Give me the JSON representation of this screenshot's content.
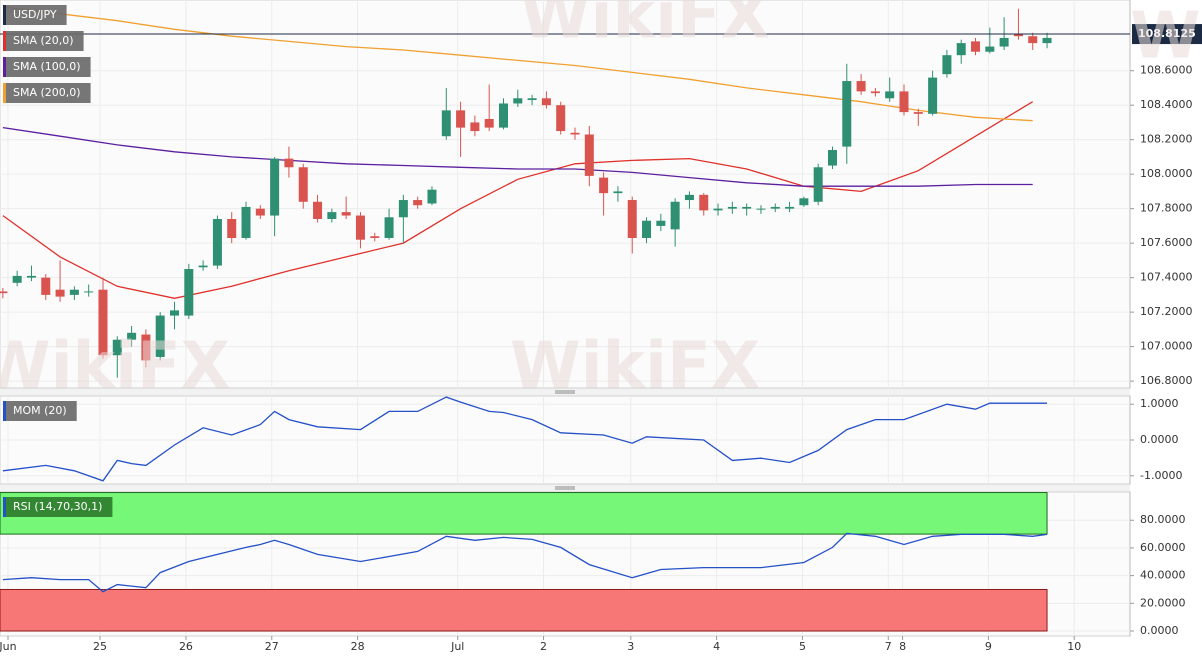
{
  "watermark": "WikiFX",
  "chart_data": [
    {
      "type": "candlestick",
      "xlim": [
        -0.2,
        78.8
      ],
      "ylim": [
        106.76,
        109.01
      ],
      "yticks": [
        {
          "value": 106.8,
          "label": "106.8000"
        },
        {
          "value": 107.0,
          "label": "107.0000"
        },
        {
          "value": 107.2,
          "label": "107.2000"
        },
        {
          "value": 107.4,
          "label": "107.4000"
        },
        {
          "value": 107.6,
          "label": "107.6000"
        },
        {
          "value": 107.8,
          "label": "107.8000"
        },
        {
          "value": 108.0,
          "label": "108.0000"
        },
        {
          "value": 108.2,
          "label": "108.2000"
        },
        {
          "value": 108.4,
          "label": "108.4000"
        },
        {
          "value": 108.6,
          "label": "108.6000"
        }
      ],
      "last_price": 108.8125,
      "candles": {
        "name": "USD/JPY",
        "color": "#1c2a44",
        "up_color": "#2e8f72",
        "down_color": "#d9534f",
        "open": [
          107.32,
          107.37,
          107.4,
          107.4,
          107.33,
          107.3,
          107.32,
          107.33,
          106.95,
          107.04,
          107.07,
          106.94,
          107.18,
          107.18,
          107.46,
          107.47,
          107.74,
          107.63,
          107.8,
          107.76,
          108.09,
          108.04,
          107.84,
          107.74,
          107.78,
          107.76,
          107.64,
          107.63,
          107.75,
          107.85,
          107.83,
          108.22,
          108.37,
          108.3,
          108.32,
          108.27,
          108.41,
          108.43,
          108.44,
          108.4,
          108.24,
          108.23,
          107.98,
          107.89,
          107.85,
          107.63,
          107.7,
          107.68,
          107.85,
          107.88,
          107.79,
          107.8,
          107.8,
          107.8,
          107.8,
          107.8,
          107.82,
          107.84,
          108.05,
          108.16,
          108.54,
          108.48,
          108.44,
          108.48,
          108.36,
          108.35,
          108.58,
          108.69,
          108.77,
          108.71,
          108.74,
          108.81,
          108.8,
          108.76
        ],
        "high": [
          107.34,
          107.44,
          107.47,
          107.42,
          107.5,
          107.35,
          107.36,
          107.4,
          107.06,
          107.12,
          107.1,
          107.2,
          107.26,
          107.48,
          107.5,
          107.76,
          107.78,
          107.84,
          107.82,
          108.1,
          108.16,
          108.06,
          107.88,
          107.8,
          107.87,
          107.78,
          107.66,
          107.8,
          107.88,
          107.87,
          107.93,
          108.5,
          108.42,
          108.34,
          108.52,
          108.44,
          108.49,
          108.46,
          108.48,
          108.42,
          108.27,
          108.28,
          108.01,
          107.93,
          107.87,
          107.75,
          107.77,
          107.86,
          107.9,
          107.89,
          107.83,
          107.84,
          107.83,
          107.82,
          107.83,
          107.84,
          107.87,
          108.06,
          108.16,
          108.64,
          108.58,
          108.5,
          108.56,
          108.52,
          108.38,
          108.6,
          108.72,
          108.78,
          108.79,
          108.85,
          108.91,
          108.96,
          108.82,
          108.82
        ],
        "low": [
          107.28,
          107.35,
          107.38,
          107.27,
          107.26,
          107.27,
          107.29,
          106.93,
          106.82,
          107.0,
          106.88,
          106.92,
          107.1,
          107.16,
          107.44,
          107.45,
          107.6,
          107.62,
          107.74,
          107.64,
          107.98,
          107.8,
          107.72,
          107.72,
          107.74,
          107.57,
          107.61,
          107.62,
          107.6,
          107.8,
          107.82,
          108.2,
          108.1,
          108.22,
          108.25,
          108.26,
          108.39,
          108.4,
          108.38,
          108.23,
          108.2,
          107.93,
          107.76,
          107.84,
          107.54,
          107.6,
          107.67,
          107.58,
          107.8,
          107.76,
          107.76,
          107.77,
          107.76,
          107.77,
          107.78,
          107.78,
          107.81,
          107.82,
          108.03,
          108.06,
          108.46,
          108.45,
          108.42,
          108.34,
          108.28,
          108.34,
          108.56,
          108.64,
          108.69,
          108.7,
          108.72,
          108.78,
          108.72,
          108.73
        ],
        "close": [
          107.31,
          107.41,
          107.41,
          107.3,
          107.29,
          107.33,
          107.32,
          106.95,
          107.04,
          107.08,
          106.92,
          107.18,
          107.21,
          107.45,
          107.47,
          107.74,
          107.63,
          107.81,
          107.76,
          108.09,
          108.04,
          107.84,
          107.74,
          107.78,
          107.76,
          107.62,
          107.63,
          107.75,
          107.85,
          107.82,
          107.91,
          108.37,
          108.27,
          108.25,
          108.27,
          108.41,
          108.44,
          108.44,
          108.4,
          108.25,
          108.23,
          107.99,
          107.89,
          107.9,
          107.63,
          107.73,
          107.73,
          107.84,
          107.88,
          107.79,
          107.8,
          107.81,
          107.81,
          107.8,
          107.81,
          107.81,
          107.86,
          108.04,
          108.14,
          108.54,
          108.48,
          108.47,
          108.48,
          108.36,
          108.35,
          108.56,
          108.69,
          108.76,
          108.71,
          108.74,
          108.79,
          108.8,
          108.76,
          108.79
        ]
      },
      "series": [
        {
          "name": "SMA (20,0)",
          "color": "#e0302a",
          "x": [
            0,
            4,
            8,
            12,
            16,
            20,
            24,
            28,
            32,
            36,
            40,
            44,
            48,
            52,
            56,
            60,
            64,
            68,
            72
          ],
          "values": [
            107.76,
            107.52,
            107.35,
            107.28,
            107.35,
            107.44,
            107.52,
            107.6,
            107.8,
            107.97,
            108.06,
            108.08,
            108.09,
            108.03,
            107.93,
            107.9,
            108.02,
            108.22,
            108.42
          ]
        },
        {
          "name": "SMA (100,0)",
          "color": "#5b1fa0",
          "x": [
            0,
            4,
            8,
            12,
            16,
            20,
            24,
            28,
            32,
            36,
            40,
            44,
            48,
            52,
            56,
            60,
            64,
            68,
            72
          ],
          "values": [
            108.27,
            108.22,
            108.17,
            108.13,
            108.1,
            108.08,
            108.06,
            108.05,
            108.04,
            108.03,
            108.03,
            108.01,
            107.98,
            107.95,
            107.93,
            107.93,
            107.93,
            107.94,
            107.94
          ]
        },
        {
          "name": "SMA (200,0)",
          "color": "#f0a030",
          "x": [
            0,
            4,
            8,
            12,
            16,
            20,
            24,
            28,
            32,
            36,
            40,
            44,
            48,
            52,
            56,
            60,
            64,
            68,
            72
          ],
          "values": [
            108.97,
            108.93,
            108.89,
            108.84,
            108.8,
            108.77,
            108.74,
            108.72,
            108.69,
            108.66,
            108.63,
            108.59,
            108.55,
            108.5,
            108.46,
            108.42,
            108.37,
            108.33,
            108.31
          ]
        }
      ]
    },
    {
      "type": "line",
      "xlim": [
        -0.2,
        78.8
      ],
      "ylim": [
        -1.23,
        1.23
      ],
      "yticks": [
        {
          "value": 1,
          "label": "1.0000"
        },
        {
          "value": 0,
          "label": "0.0000"
        },
        {
          "value": -1,
          "label": "-1.0000"
        }
      ],
      "series": [
        {
          "name": "MOM (20)",
          "color": "#2450c8",
          "x": [
            0,
            3,
            5,
            7,
            8,
            9,
            10,
            12,
            14,
            16,
            18,
            19,
            20,
            22,
            25,
            27,
            29,
            31,
            32,
            34,
            35,
            37,
            39,
            42,
            44,
            45,
            49,
            51,
            53,
            55,
            57,
            59,
            61,
            63,
            66,
            68,
            69,
            73
          ],
          "values": [
            -0.86,
            -0.71,
            -0.86,
            -1.14,
            -0.57,
            -0.66,
            -0.71,
            -0.14,
            0.34,
            0.14,
            0.43,
            0.8,
            0.57,
            0.37,
            0.29,
            0.8,
            0.8,
            1.2,
            1.06,
            0.8,
            0.77,
            0.57,
            0.2,
            0.14,
            -0.09,
            0.09,
            0,
            -0.57,
            -0.51,
            -0.63,
            -0.29,
            0.29,
            0.57,
            0.57,
            1.0,
            0.86,
            1.03,
            1.03
          ]
        }
      ]
    },
    {
      "type": "line",
      "xlim": [
        -0.2,
        78.8
      ],
      "ylim": [
        -3.6,
        100.4
      ],
      "yticks": [
        {
          "value": 80,
          "label": "80.0000"
        },
        {
          "value": 60,
          "label": "60.0000"
        },
        {
          "value": 40,
          "label": "40.0000"
        },
        {
          "value": 20,
          "label": "20.0000"
        },
        {
          "value": 0,
          "label": "0.0000"
        }
      ],
      "xticks": [
        {
          "value": 0.36,
          "label": "Jun"
        },
        {
          "value": 6.79,
          "label": "25"
        },
        {
          "value": 12.8,
          "label": "26"
        },
        {
          "value": 18.8,
          "label": "27"
        },
        {
          "value": 24.8,
          "label": "28"
        },
        {
          "value": 31.8,
          "label": "Jul"
        },
        {
          "value": 37.8,
          "label": "2"
        },
        {
          "value": 43.9,
          "label": "3"
        },
        {
          "value": 49.9,
          "label": "4"
        },
        {
          "value": 55.9,
          "label": "5"
        },
        {
          "value": 61.9,
          "label": "7"
        },
        {
          "value": 62.9,
          "label": "8"
        },
        {
          "value": 68.9,
          "label": "9"
        },
        {
          "value": 74.9,
          "label": "10"
        }
      ],
      "zones": [
        {
          "from": 70,
          "to": 100,
          "color": "#77f777",
          "edge": "#1a6a1a"
        },
        {
          "from": 0,
          "to": 30,
          "color": "#f77777",
          "edge": "#8a1a1a"
        }
      ],
      "series": [
        {
          "name": "RSI (14,70,30,1)",
          "color": "#2450c8",
          "x": [
            0,
            2,
            4,
            6,
            7,
            8,
            10,
            11,
            13,
            15,
            17,
            18,
            19,
            20,
            22,
            25,
            27,
            29,
            31,
            33,
            35,
            37,
            39,
            41,
            44,
            46,
            49,
            51,
            53,
            56,
            58,
            59,
            61,
            63,
            65,
            67,
            70,
            72,
            73
          ],
          "values": [
            37.1,
            38.5,
            37.1,
            37.1,
            28.4,
            33.5,
            31.3,
            42.2,
            50.2,
            55.3,
            60.4,
            62.5,
            65.5,
            62.5,
            55.3,
            50.2,
            53.8,
            57.5,
            68.4,
            65.5,
            67.6,
            66.2,
            60.4,
            48,
            38.5,
            44.4,
            45.8,
            45.8,
            45.8,
            49.5,
            60.4,
            70.5,
            68.4,
            62.5,
            68.4,
            69.8,
            69.8,
            68.4,
            69.8
          ]
        }
      ]
    }
  ]
}
